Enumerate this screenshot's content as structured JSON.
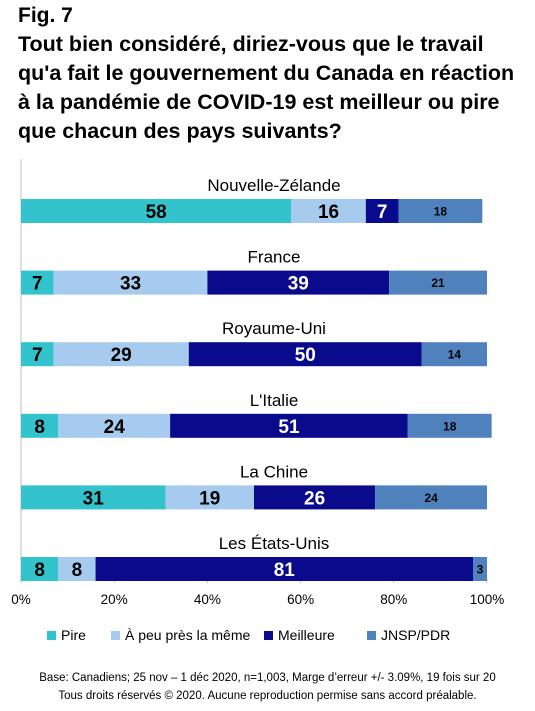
{
  "figure_label": "Fig. 7",
  "title_lines": [
    "Tout bien considéré, diriez-vous que le travail",
    "qu'a fait le gouvernement du Canada en réaction",
    "à la pandémie de COVID-19 est meilleur ou pire",
    "que chacun des pays suivants?"
  ],
  "chart_data": {
    "type": "bar",
    "orientation": "horizontal",
    "stacked": true,
    "categories": [
      "Nouvelle-Zélande",
      "France",
      "Royaume-Uni",
      "L'Italie",
      "La Chine",
      "Les États-Unis"
    ],
    "series": [
      {
        "name": "Pire",
        "color": "#33C3CC",
        "values": [
          58,
          7,
          7,
          8,
          31,
          8
        ]
      },
      {
        "name": "À peu près la même",
        "color": "#A6CBEF",
        "values": [
          16,
          33,
          29,
          24,
          19,
          8
        ]
      },
      {
        "name": "Meilleure",
        "color": "#0A0A8C",
        "values": [
          7,
          39,
          50,
          51,
          26,
          81
        ]
      },
      {
        "name": "JNSP/PDR",
        "color": "#4F81BD",
        "values": [
          18,
          21,
          14,
          18,
          24,
          3
        ]
      }
    ],
    "xlim": [
      0,
      100
    ],
    "x_ticks": [
      "0%",
      "20%",
      "40%",
      "60%",
      "80%",
      "100%"
    ],
    "legend_position": "bottom"
  },
  "footer": {
    "line1": "Base: Canadiens; 25 nov – 1 déc 2020, n=1,003, Marge d’erreur +/- 3.09%, 19 fois sur 20",
    "line2": "Tous droits réservés © 2020. Aucune reproduction permise sans accord préalable."
  }
}
